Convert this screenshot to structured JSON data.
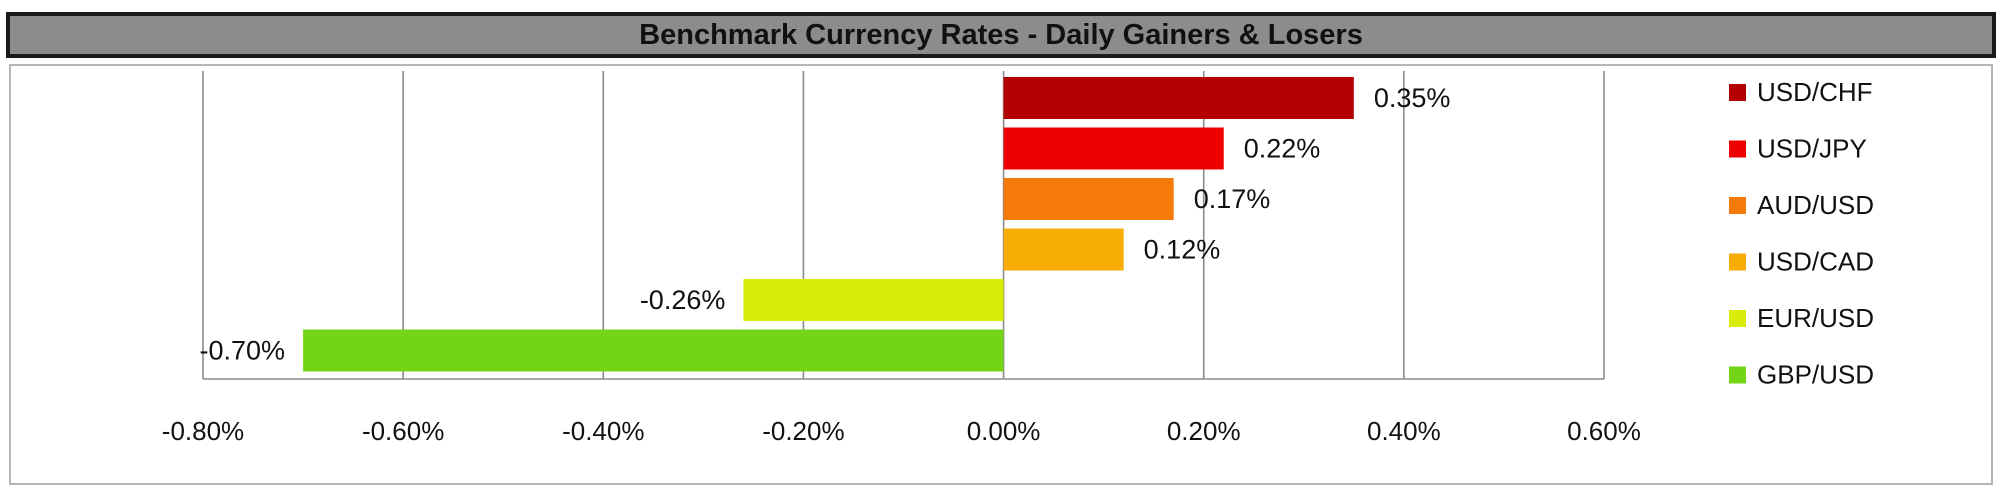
{
  "chart_data": {
    "type": "bar",
    "orientation": "horizontal",
    "title": "Benchmark Currency Rates - Daily Gainers & Losers",
    "categories": [
      "USD/CHF",
      "USD/JPY",
      "AUD/USD",
      "USD/CAD",
      "EUR/USD",
      "GBP/USD"
    ],
    "values": [
      0.35,
      0.22,
      0.17,
      0.12,
      -0.26,
      -0.7
    ],
    "value_labels": [
      "0.35%",
      "0.22%",
      "0.17%",
      "0.12%",
      "-0.26%",
      "-0.70%"
    ],
    "colors": [
      "#b30000",
      "#ee0000",
      "#f47a0a",
      "#f7ad05",
      "#d9ec0a",
      "#74d416"
    ],
    "xlim": [
      -0.8,
      0.6
    ],
    "xticks": [
      -0.8,
      -0.6,
      -0.4,
      -0.2,
      0.0,
      0.2,
      0.4,
      0.6
    ],
    "xtick_labels": [
      "-0.80%",
      "-0.60%",
      "-0.40%",
      "-0.20%",
      "0.00%",
      "0.20%",
      "0.40%",
      "0.60%"
    ],
    "xlabel": "",
    "ylabel": "",
    "grid": "vertical",
    "legend_position": "right"
  }
}
